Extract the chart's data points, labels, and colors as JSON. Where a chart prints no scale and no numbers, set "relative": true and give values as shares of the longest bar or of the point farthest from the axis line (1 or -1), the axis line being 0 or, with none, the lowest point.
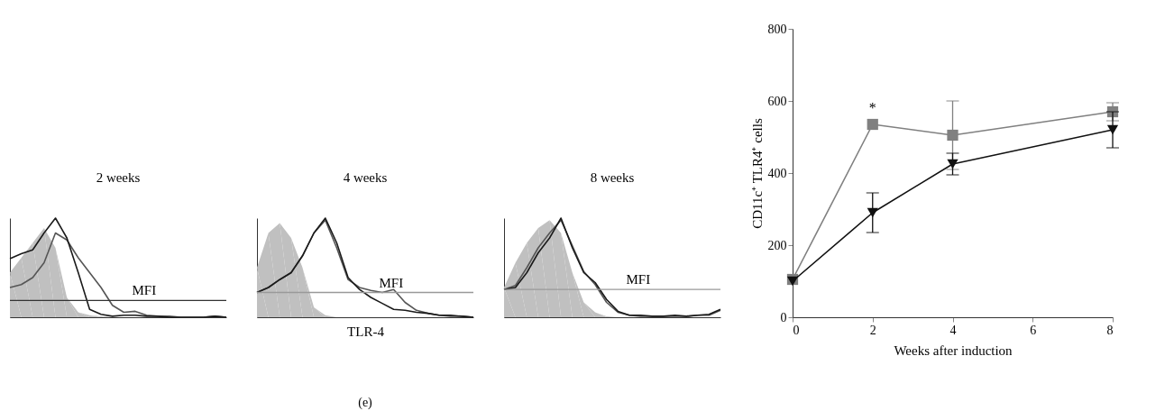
{
  "chart_data": [
    {
      "type": "line",
      "title": "2 weeks",
      "relative": true,
      "categories": [
        null,
        null,
        null,
        null,
        null,
        null,
        null,
        null,
        null,
        null,
        null,
        null,
        null,
        null,
        null,
        null,
        null,
        null,
        null,
        null
      ],
      "series": [
        {
          "type": "area",
          "color": "#c0c0c0",
          "values": [
            0.45,
            0.6,
            0.75,
            0.9,
            0.7,
            0.2,
            0.05,
            0.02,
            0.01,
            0,
            0,
            0,
            0,
            0,
            0,
            0,
            0,
            0,
            0,
            0
          ]
        },
        {
          "color": "#555555",
          "values": [
            0.3,
            0.33,
            0.4,
            0.55,
            0.85,
            0.78,
            0.6,
            0.45,
            0.3,
            0.12,
            0.05,
            0.06,
            0.02,
            0.01,
            0.01,
            0,
            0,
            0,
            0.01,
            0
          ]
        },
        {
          "color": "#1a1a1a",
          "values": [
            0.59,
            0.64,
            0.68,
            0.85,
            1.0,
            0.8,
            0.45,
            0.08,
            0.03,
            0.01,
            0.02,
            0.02,
            0.01,
            0.01,
            0,
            0,
            0,
            0,
            0.01,
            0
          ]
        }
      ],
      "ref_lines": [
        {
          "axis": "y",
          "value": 0.17,
          "label": "MFI",
          "color": "#333333"
        }
      ]
    },
    {
      "type": "line",
      "title": "4 weeks",
      "xlabel": "TLR-4",
      "relative": true,
      "categories": [
        null,
        null,
        null,
        null,
        null,
        null,
        null,
        null,
        null,
        null,
        null,
        null,
        null,
        null,
        null,
        null,
        null,
        null,
        null,
        null
      ],
      "series": [
        {
          "type": "area",
          "color": "#c0c0c0",
          "values": [
            0.5,
            0.85,
            0.95,
            0.8,
            0.5,
            0.1,
            0.02,
            0,
            0,
            0,
            0,
            0,
            0,
            0,
            0,
            0,
            0,
            0,
            0,
            0
          ]
        },
        {
          "color": "#555555",
          "values": [
            0.25,
            0.3,
            0.38,
            0.45,
            0.62,
            0.85,
            0.98,
            0.7,
            0.38,
            0.3,
            0.27,
            0.25,
            0.28,
            0.15,
            0.07,
            0.04,
            0.02,
            0.01,
            0.01,
            0
          ]
        },
        {
          "color": "#1a1a1a",
          "values": [
            0.25,
            0.3,
            0.38,
            0.45,
            0.62,
            0.85,
            1.0,
            0.75,
            0.4,
            0.28,
            0.2,
            0.14,
            0.08,
            0.07,
            0.05,
            0.04,
            0.02,
            0.02,
            0.01,
            0
          ]
        }
      ],
      "ref_lines": [
        {
          "axis": "y",
          "value": 0.25,
          "label": "MFI",
          "color": "#999999"
        }
      ],
      "annotations": [
        "(e)"
      ]
    },
    {
      "type": "line",
      "title": "8 weeks",
      "relative": true,
      "categories": [
        null,
        null,
        null,
        null,
        null,
        null,
        null,
        null,
        null,
        null,
        null,
        null,
        null,
        null,
        null,
        null,
        null,
        null,
        null,
        null
      ],
      "series": [
        {
          "type": "area",
          "color": "#c0c0c0",
          "values": [
            0.3,
            0.55,
            0.75,
            0.9,
            0.98,
            0.85,
            0.45,
            0.15,
            0.05,
            0.01,
            0,
            0,
            0,
            0,
            0,
            0,
            0,
            0,
            0,
            0
          ]
        },
        {
          "color": "#555555",
          "values": [
            0.28,
            0.32,
            0.5,
            0.7,
            0.85,
            0.98,
            0.72,
            0.46,
            0.33,
            0.15,
            0.05,
            0.02,
            0.01,
            0.01,
            0.01,
            0.01,
            0.01,
            0.02,
            0.02,
            0.07
          ]
        },
        {
          "color": "#1a1a1a",
          "values": [
            0.28,
            0.3,
            0.45,
            0.65,
            0.8,
            1.0,
            0.7,
            0.45,
            0.35,
            0.18,
            0.06,
            0.02,
            0.02,
            0.01,
            0.01,
            0.02,
            0.01,
            0.02,
            0.03,
            0.08
          ]
        }
      ],
      "ref_lines": [
        {
          "axis": "y",
          "value": 0.28,
          "label": "MFI",
          "color": "#999999"
        }
      ]
    },
    {
      "type": "line",
      "xlabel": "Weeks after induction",
      "ylabel": "CD11c⁺ TLR4⁺ cells",
      "x": [
        0,
        2,
        4,
        8
      ],
      "xlim": [
        0,
        8
      ],
      "xticks": [
        0,
        2,
        4,
        6,
        8
      ],
      "ylim": [
        0,
        800
      ],
      "yticks": [
        0,
        200,
        400,
        600,
        800
      ],
      "series": [
        {
          "color": "#808080",
          "marker": "square",
          "values": [
            105,
            535,
            505,
            570
          ],
          "errors": [
            null,
            null,
            95,
            25
          ]
        },
        {
          "color": "#111111",
          "marker": "triangle",
          "values": [
            100,
            290,
            425,
            520
          ],
          "errors": [
            null,
            55,
            30,
            50
          ]
        }
      ],
      "annotations": [
        {
          "text": "*",
          "x": 2,
          "y": 535
        }
      ]
    }
  ]
}
